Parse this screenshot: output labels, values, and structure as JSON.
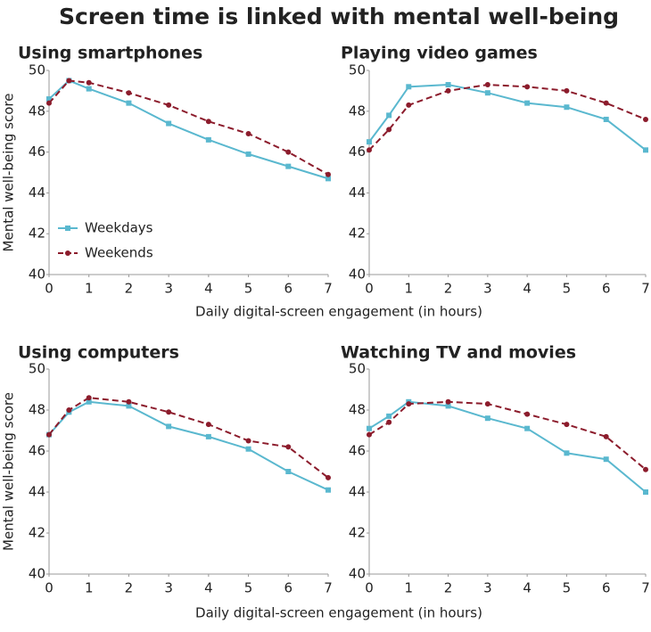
{
  "title": "Screen time is linked with mental well-being",
  "chart_data": [
    {
      "type": "line",
      "title": "Using smartphones",
      "y_label": "Mental well-being score",
      "x": [
        0,
        0.5,
        1,
        2,
        3,
        4,
        5,
        6,
        7
      ],
      "xlim": [
        0,
        7
      ],
      "ylim": [
        40,
        50
      ],
      "xticks": [
        0,
        1,
        2,
        3,
        4,
        5,
        6,
        7
      ],
      "yticks": [
        40,
        42,
        44,
        46,
        48,
        50
      ],
      "legend": "lower left",
      "series": [
        {
          "name": "Weekdays",
          "color": "#5ab8cf",
          "style": "solid",
          "values": [
            48.6,
            49.5,
            49.1,
            48.4,
            47.4,
            46.6,
            45.9,
            45.3,
            44.7
          ]
        },
        {
          "name": "Weekends",
          "color": "#8c1c2c",
          "style": "dashed",
          "values": [
            48.4,
            49.5,
            49.4,
            48.9,
            48.3,
            47.5,
            46.9,
            46.0,
            44.9
          ]
        }
      ]
    },
    {
      "type": "line",
      "title": "Playing video games",
      "x": [
        0,
        0.5,
        1,
        2,
        3,
        4,
        5,
        6,
        7
      ],
      "xlim": [
        0,
        7
      ],
      "ylim": [
        40,
        50
      ],
      "xticks": [
        0,
        1,
        2,
        3,
        4,
        5,
        6,
        7
      ],
      "yticks": [
        40,
        42,
        44,
        46,
        48,
        50
      ],
      "series": [
        {
          "color": "#5ab8cf",
          "style": "solid",
          "values": [
            46.5,
            47.8,
            49.2,
            49.3,
            48.9,
            48.4,
            48.2,
            47.6,
            46.1
          ]
        },
        {
          "color": "#8c1c2c",
          "style": "dashed",
          "values": [
            46.1,
            47.1,
            48.3,
            49.0,
            49.3,
            49.2,
            49.0,
            48.4,
            47.6
          ]
        }
      ]
    },
    {
      "type": "line",
      "title": "Using computers",
      "y_label": "Mental well-being score",
      "x_label": "Daily digital-screen engagement  (in hours)",
      "x": [
        0,
        0.5,
        1,
        2,
        3,
        4,
        5,
        6,
        7
      ],
      "xlim": [
        0,
        7
      ],
      "ylim": [
        40,
        50
      ],
      "xticks": [
        0,
        1,
        2,
        3,
        4,
        5,
        6,
        7
      ],
      "yticks": [
        40,
        42,
        44,
        46,
        48,
        50
      ],
      "series": [
        {
          "color": "#5ab8cf",
          "style": "solid",
          "values": [
            46.8,
            47.9,
            48.4,
            48.2,
            47.2,
            46.7,
            46.1,
            45.0,
            44.1
          ]
        },
        {
          "color": "#8c1c2c",
          "style": "dashed",
          "values": [
            46.8,
            48.0,
            48.6,
            48.4,
            47.9,
            47.3,
            46.5,
            46.2,
            44.7
          ]
        }
      ]
    },
    {
      "type": "line",
      "title": "Watching TV and movies",
      "x": [
        0,
        0.5,
        1,
        2,
        3,
        4,
        5,
        6,
        7
      ],
      "xlim": [
        0,
        7
      ],
      "ylim": [
        40,
        50
      ],
      "xticks": [
        0,
        1,
        2,
        3,
        4,
        5,
        6,
        7
      ],
      "yticks": [
        40,
        42,
        44,
        46,
        48,
        50
      ],
      "series": [
        {
          "color": "#5ab8cf",
          "style": "solid",
          "values": [
            47.1,
            47.7,
            48.4,
            48.2,
            47.6,
            47.1,
            45.9,
            45.6,
            44.0
          ]
        },
        {
          "color": "#8c1c2c",
          "style": "dashed",
          "values": [
            46.8,
            47.4,
            48.3,
            48.4,
            48.3,
            47.8,
            47.3,
            46.7,
            45.1
          ]
        }
      ]
    }
  ],
  "x_label_top": "Daily digital-screen engagement  (in hours)"
}
